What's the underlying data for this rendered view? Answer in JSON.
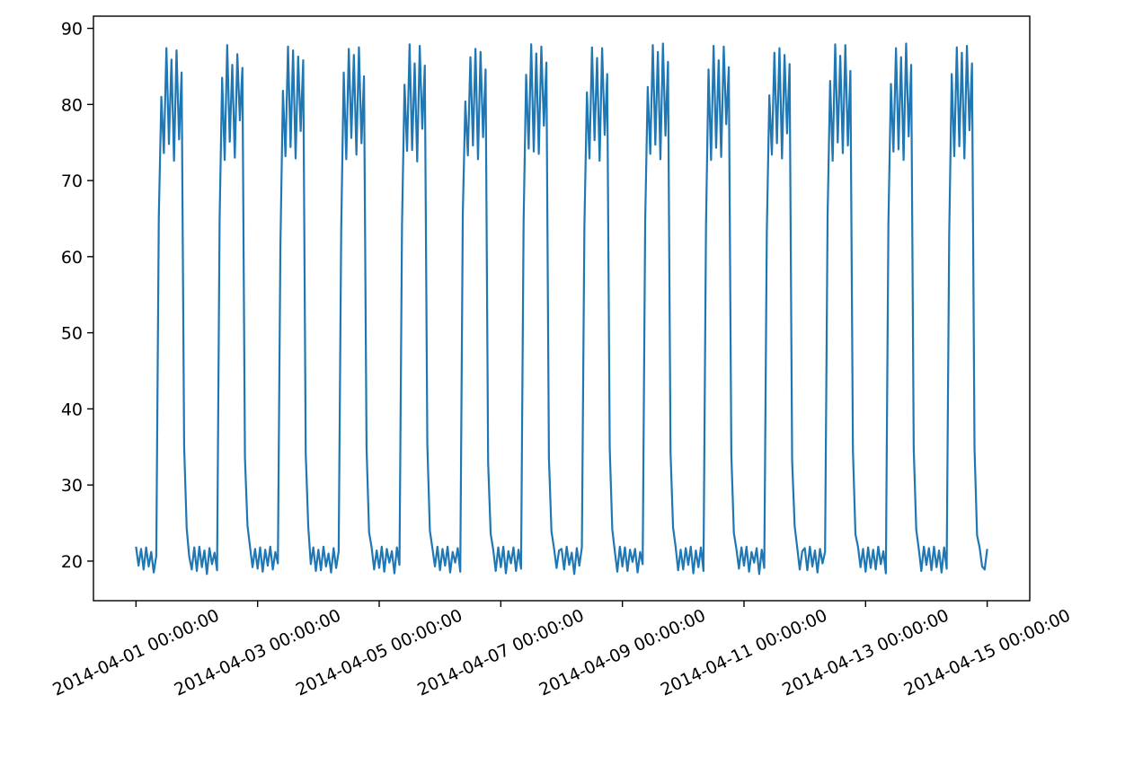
{
  "chart_data": {
    "type": "line",
    "color": "#1f77b4",
    "xlim": [
      "2014-03-31 07:12:00",
      "2014-04-15 16:48:00"
    ],
    "xticks": [
      "2014-04-01 00:00:00",
      "2014-04-03 00:00:00",
      "2014-04-05 00:00:00",
      "2014-04-07 00:00:00",
      "2014-04-09 00:00:00",
      "2014-04-11 00:00:00",
      "2014-04-13 00:00:00",
      "2014-04-15 00:00:00"
    ],
    "ylim": [
      14.8,
      91.6
    ],
    "yticks": [
      20,
      30,
      40,
      50,
      60,
      70,
      80,
      90
    ],
    "x": [
      "2014-04-01 00:00:00",
      "2014-04-01 01:00:00",
      "2014-04-01 02:00:00",
      "2014-04-01 03:00:00",
      "2014-04-01 04:00:00",
      "2014-04-01 05:00:00",
      "2014-04-01 06:00:00",
      "2014-04-01 07:00:00",
      "2014-04-01 08:00:00",
      "2014-04-01 09:00:00",
      "2014-04-01 10:00:00",
      "2014-04-01 11:00:00",
      "2014-04-01 12:00:00",
      "2014-04-01 13:00:00",
      "2014-04-01 14:00:00",
      "2014-04-01 15:00:00",
      "2014-04-01 16:00:00",
      "2014-04-01 17:00:00",
      "2014-04-01 18:00:00",
      "2014-04-01 19:00:00",
      "2014-04-01 20:00:00",
      "2014-04-01 21:00:00",
      "2014-04-01 22:00:00",
      "2014-04-01 23:00:00",
      "2014-04-02 00:00:00",
      "2014-04-02 01:00:00",
      "2014-04-02 02:00:00",
      "2014-04-02 03:00:00",
      "2014-04-02 04:00:00",
      "2014-04-02 05:00:00",
      "2014-04-02 06:00:00",
      "2014-04-02 07:00:00",
      "2014-04-02 08:00:00",
      "2014-04-02 09:00:00",
      "2014-04-02 10:00:00",
      "2014-04-02 11:00:00",
      "2014-04-02 12:00:00",
      "2014-04-02 13:00:00",
      "2014-04-02 14:00:00",
      "2014-04-02 15:00:00",
      "2014-04-02 16:00:00",
      "2014-04-02 17:00:00",
      "2014-04-02 18:00:00",
      "2014-04-02 19:00:00",
      "2014-04-02 20:00:00",
      "2014-04-02 21:00:00",
      "2014-04-02 22:00:00",
      "2014-04-02 23:00:00",
      "2014-04-03 00:00:00",
      "2014-04-03 01:00:00",
      "2014-04-03 02:00:00",
      "2014-04-03 03:00:00",
      "2014-04-03 04:00:00",
      "2014-04-03 05:00:00",
      "2014-04-03 06:00:00",
      "2014-04-03 07:00:00",
      "2014-04-03 08:00:00",
      "2014-04-03 09:00:00",
      "2014-04-03 10:00:00",
      "2014-04-03 11:00:00",
      "2014-04-03 12:00:00",
      "2014-04-03 13:00:00",
      "2014-04-03 14:00:00",
      "2014-04-03 15:00:00",
      "2014-04-03 16:00:00",
      "2014-04-03 17:00:00",
      "2014-04-03 18:00:00",
      "2014-04-03 19:00:00",
      "2014-04-03 20:00:00",
      "2014-04-03 21:00:00",
      "2014-04-03 22:00:00",
      "2014-04-03 23:00:00",
      "2014-04-04 00:00:00",
      "2014-04-04 01:00:00",
      "2014-04-04 02:00:00",
      "2014-04-04 03:00:00",
      "2014-04-04 04:00:00",
      "2014-04-04 05:00:00",
      "2014-04-04 06:00:00",
      "2014-04-04 07:00:00",
      "2014-04-04 08:00:00",
      "2014-04-04 09:00:00",
      "2014-04-04 10:00:00",
      "2014-04-04 11:00:00",
      "2014-04-04 12:00:00",
      "2014-04-04 13:00:00",
      "2014-04-04 14:00:00",
      "2014-04-04 15:00:00",
      "2014-04-04 16:00:00",
      "2014-04-04 17:00:00",
      "2014-04-04 18:00:00",
      "2014-04-04 19:00:00",
      "2014-04-04 20:00:00",
      "2014-04-04 21:00:00",
      "2014-04-04 22:00:00",
      "2014-04-04 23:00:00",
      "2014-04-05 00:00:00",
      "2014-04-05 01:00:00",
      "2014-04-05 02:00:00",
      "2014-04-05 03:00:00",
      "2014-04-05 04:00:00",
      "2014-04-05 05:00:00",
      "2014-04-05 06:00:00",
      "2014-04-05 07:00:00",
      "2014-04-05 08:00:00",
      "2014-04-05 09:00:00",
      "2014-04-05 10:00:00",
      "2014-04-05 11:00:00",
      "2014-04-05 12:00:00",
      "2014-04-05 13:00:00",
      "2014-04-05 14:00:00",
      "2014-04-05 15:00:00",
      "2014-04-05 16:00:00",
      "2014-04-05 17:00:00",
      "2014-04-05 18:00:00",
      "2014-04-05 19:00:00",
      "2014-04-05 20:00:00",
      "2014-04-05 21:00:00",
      "2014-04-05 22:00:00",
      "2014-04-05 23:00:00",
      "2014-04-06 00:00:00",
      "2014-04-06 01:00:00",
      "2014-04-06 02:00:00",
      "2014-04-06 03:00:00",
      "2014-04-06 04:00:00",
      "2014-04-06 05:00:00",
      "2014-04-06 06:00:00",
      "2014-04-06 07:00:00",
      "2014-04-06 08:00:00",
      "2014-04-06 09:00:00",
      "2014-04-06 10:00:00",
      "2014-04-06 11:00:00",
      "2014-04-06 12:00:00",
      "2014-04-06 13:00:00",
      "2014-04-06 14:00:00",
      "2014-04-06 15:00:00",
      "2014-04-06 16:00:00",
      "2014-04-06 17:00:00",
      "2014-04-06 18:00:00",
      "2014-04-06 19:00:00",
      "2014-04-06 20:00:00",
      "2014-04-06 21:00:00",
      "2014-04-06 22:00:00",
      "2014-04-06 23:00:00",
      "2014-04-07 00:00:00",
      "2014-04-07 01:00:00",
      "2014-04-07 02:00:00",
      "2014-04-07 03:00:00",
      "2014-04-07 04:00:00",
      "2014-04-07 05:00:00",
      "2014-04-07 06:00:00",
      "2014-04-07 07:00:00",
      "2014-04-07 08:00:00",
      "2014-04-07 09:00:00",
      "2014-04-07 10:00:00",
      "2014-04-07 11:00:00",
      "2014-04-07 12:00:00",
      "2014-04-07 13:00:00",
      "2014-04-07 14:00:00",
      "2014-04-07 15:00:00",
      "2014-04-07 16:00:00",
      "2014-04-07 17:00:00",
      "2014-04-07 18:00:00",
      "2014-04-07 19:00:00",
      "2014-04-07 20:00:00",
      "2014-04-07 21:00:00",
      "2014-04-07 22:00:00",
      "2014-04-07 23:00:00",
      "2014-04-08 00:00:00",
      "2014-04-08 01:00:00",
      "2014-04-08 02:00:00",
      "2014-04-08 03:00:00",
      "2014-04-08 04:00:00",
      "2014-04-08 05:00:00",
      "2014-04-08 06:00:00",
      "2014-04-08 07:00:00",
      "2014-04-08 08:00:00",
      "2014-04-08 09:00:00",
      "2014-04-08 10:00:00",
      "2014-04-08 11:00:00",
      "2014-04-08 12:00:00",
      "2014-04-08 13:00:00",
      "2014-04-08 14:00:00",
      "2014-04-08 15:00:00",
      "2014-04-08 16:00:00",
      "2014-04-08 17:00:00",
      "2014-04-08 18:00:00",
      "2014-04-08 19:00:00",
      "2014-04-08 20:00:00",
      "2014-04-08 21:00:00",
      "2014-04-08 22:00:00",
      "2014-04-08 23:00:00",
      "2014-04-09 00:00:00",
      "2014-04-09 01:00:00",
      "2014-04-09 02:00:00",
      "2014-04-09 03:00:00",
      "2014-04-09 04:00:00",
      "2014-04-09 05:00:00",
      "2014-04-09 06:00:00",
      "2014-04-09 07:00:00",
      "2014-04-09 08:00:00",
      "2014-04-09 09:00:00",
      "2014-04-09 10:00:00",
      "2014-04-09 11:00:00",
      "2014-04-09 12:00:00",
      "2014-04-09 13:00:00",
      "2014-04-09 14:00:00",
      "2014-04-09 15:00:00",
      "2014-04-09 16:00:00",
      "2014-04-09 17:00:00",
      "2014-04-09 18:00:00",
      "2014-04-09 19:00:00",
      "2014-04-09 20:00:00",
      "2014-04-09 21:00:00",
      "2014-04-09 22:00:00",
      "2014-04-09 23:00:00",
      "2014-04-10 00:00:00",
      "2014-04-10 01:00:00",
      "2014-04-10 02:00:00",
      "2014-04-10 03:00:00",
      "2014-04-10 04:00:00",
      "2014-04-10 05:00:00",
      "2014-04-10 06:00:00",
      "2014-04-10 07:00:00",
      "2014-04-10 08:00:00",
      "2014-04-10 09:00:00",
      "2014-04-10 10:00:00",
      "2014-04-10 11:00:00",
      "2014-04-10 12:00:00",
      "2014-04-10 13:00:00",
      "2014-04-10 14:00:00",
      "2014-04-10 15:00:00",
      "2014-04-10 16:00:00",
      "2014-04-10 17:00:00",
      "2014-04-10 18:00:00",
      "2014-04-10 19:00:00",
      "2014-04-10 20:00:00",
      "2014-04-10 21:00:00",
      "2014-04-10 22:00:00",
      "2014-04-10 23:00:00",
      "2014-04-11 00:00:00",
      "2014-04-11 01:00:00",
      "2014-04-11 02:00:00",
      "2014-04-11 03:00:00",
      "2014-04-11 04:00:00",
      "2014-04-11 05:00:00",
      "2014-04-11 06:00:00",
      "2014-04-11 07:00:00",
      "2014-04-11 08:00:00",
      "2014-04-11 09:00:00",
      "2014-04-11 10:00:00",
      "2014-04-11 11:00:00",
      "2014-04-11 12:00:00",
      "2014-04-11 13:00:00",
      "2014-04-11 14:00:00",
      "2014-04-11 15:00:00",
      "2014-04-11 16:00:00",
      "2014-04-11 17:00:00",
      "2014-04-11 18:00:00",
      "2014-04-11 19:00:00",
      "2014-04-11 20:00:00",
      "2014-04-11 21:00:00",
      "2014-04-11 22:00:00",
      "2014-04-11 23:00:00",
      "2014-04-12 00:00:00",
      "2014-04-12 01:00:00",
      "2014-04-12 02:00:00",
      "2014-04-12 03:00:00",
      "2014-04-12 04:00:00",
      "2014-04-12 05:00:00",
      "2014-04-12 06:00:00",
      "2014-04-12 07:00:00",
      "2014-04-12 08:00:00",
      "2014-04-12 09:00:00",
      "2014-04-12 10:00:00",
      "2014-04-12 11:00:00",
      "2014-04-12 12:00:00",
      "2014-04-12 13:00:00",
      "2014-04-12 14:00:00",
      "2014-04-12 15:00:00",
      "2014-04-12 16:00:00",
      "2014-04-12 17:00:00",
      "2014-04-12 18:00:00",
      "2014-04-12 19:00:00",
      "2014-04-12 20:00:00",
      "2014-04-12 21:00:00",
      "2014-04-12 22:00:00",
      "2014-04-12 23:00:00",
      "2014-04-13 00:00:00",
      "2014-04-13 01:00:00",
      "2014-04-13 02:00:00",
      "2014-04-13 03:00:00",
      "2014-04-13 04:00:00",
      "2014-04-13 05:00:00",
      "2014-04-13 06:00:00",
      "2014-04-13 07:00:00",
      "2014-04-13 08:00:00",
      "2014-04-13 09:00:00",
      "2014-04-13 10:00:00",
      "2014-04-13 11:00:00",
      "2014-04-13 12:00:00",
      "2014-04-13 13:00:00",
      "2014-04-13 14:00:00",
      "2014-04-13 15:00:00",
      "2014-04-13 16:00:00",
      "2014-04-13 17:00:00",
      "2014-04-13 18:00:00",
      "2014-04-13 19:00:00",
      "2014-04-13 20:00:00",
      "2014-04-13 21:00:00",
      "2014-04-13 22:00:00",
      "2014-04-13 23:00:00",
      "2014-04-14 00:00:00",
      "2014-04-14 01:00:00",
      "2014-04-14 02:00:00",
      "2014-04-14 03:00:00",
      "2014-04-14 04:00:00",
      "2014-04-14 05:00:00",
      "2014-04-14 06:00:00",
      "2014-04-14 07:00:00",
      "2014-04-14 08:00:00",
      "2014-04-14 09:00:00",
      "2014-04-14 10:00:00",
      "2014-04-14 11:00:00",
      "2014-04-14 12:00:00",
      "2014-04-14 13:00:00",
      "2014-04-14 14:00:00",
      "2014-04-14 15:00:00",
      "2014-04-14 16:00:00",
      "2014-04-14 17:00:00",
      "2014-04-14 18:00:00",
      "2014-04-14 19:00:00",
      "2014-04-14 20:00:00",
      "2014-04-14 21:00:00",
      "2014-04-14 22:00:00",
      "2014-04-14 23:00:00",
      "2014-04-15 00:00:00"
    ],
    "values": [
      21.9,
      19.4,
      21.6,
      18.9,
      21.8,
      19.3,
      21.2,
      18.5,
      20.7,
      65.2,
      81.0,
      73.6,
      87.4,
      74.8,
      85.9,
      72.6,
      87.1,
      75.4,
      84.2,
      35.1,
      24.3,
      20.6,
      18.9,
      21.8,
      18.7,
      21.9,
      19.2,
      21.4,
      18.3,
      21.7,
      19.6,
      21.1,
      18.8,
      64.9,
      83.5,
      72.7,
      87.8,
      75.1,
      85.2,
      73.0,
      86.6,
      77.9,
      84.8,
      33.6,
      24.7,
      21.9,
      19.2,
      21.6,
      19.0,
      21.8,
      18.6,
      21.5,
      19.4,
      21.9,
      18.9,
      21.2,
      19.7,
      61.4,
      81.8,
      73.2,
      87.6,
      74.4,
      87.1,
      72.9,
      86.3,
      76.5,
      85.8,
      34.1,
      24.5,
      19.6,
      21.8,
      18.7,
      21.5,
      18.8,
      21.9,
      19.3,
      21.0,
      18.5,
      21.7,
      19.1,
      21.3,
      63.5,
      84.2,
      72.8,
      87.3,
      75.6,
      86.5,
      73.4,
      87.5,
      74.9,
      83.7,
      34.9,
      23.8,
      21.8,
      18.9,
      21.4,
      19.1,
      21.9,
      18.6,
      21.6,
      19.8,
      21.3,
      18.4,
      21.8,
      19.5,
      64.2,
      82.6,
      73.9,
      87.9,
      74.0,
      85.4,
      72.5,
      87.7,
      76.8,
      85.1,
      35.3,
      24.0,
      21.7,
      19.3,
      21.9,
      18.8,
      21.6,
      19.4,
      21.9,
      18.5,
      21.2,
      19.8,
      21.7,
      18.6,
      65.7,
      80.4,
      73.3,
      86.2,
      74.6,
      87.3,
      72.8,
      86.9,
      75.7,
      84.6,
      32.9,
      23.6,
      21.5,
      18.7,
      21.8,
      19.2,
      21.9,
      18.4,
      21.3,
      19.7,
      21.8,
      18.7,
      21.5,
      19.0,
      64.6,
      83.9,
      74.2,
      87.9,
      73.8,
      86.7,
      73.5,
      87.6,
      77.2,
      85.5,
      33.5,
      23.9,
      21.7,
      19.1,
      21.4,
      21.6,
      18.9,
      21.9,
      19.5,
      21.1,
      18.3,
      21.7,
      19.4,
      21.8,
      63.9,
      81.6,
      72.9,
      87.5,
      75.3,
      86.1,
      72.6,
      87.4,
      76.0,
      84.0,
      34.8,
      24.2,
      21.3,
      18.6,
      21.9,
      19.3,
      21.8,
      18.7,
      21.5,
      19.9,
      21.6,
      18.5,
      21.2,
      19.6,
      64.8,
      82.3,
      73.5,
      87.8,
      74.7,
      86.9,
      72.8,
      88.0,
      75.9,
      85.6,
      34.3,
      24.4,
      21.9,
      18.8,
      21.5,
      18.9,
      21.7,
      19.5,
      21.9,
      18.4,
      21.4,
      19.2,
      21.8,
      18.7,
      64.1,
      84.6,
      72.7,
      87.7,
      74.3,
      85.8,
      73.1,
      87.6,
      77.4,
      84.9,
      34.0,
      23.7,
      21.6,
      19.0,
      21.8,
      19.4,
      21.9,
      18.6,
      21.2,
      19.8,
      21.7,
      18.3,
      21.5,
      19.1,
      63.2,
      81.2,
      73.4,
      86.8,
      74.9,
      87.4,
      72.9,
      86.5,
      76.2,
      85.3,
      33.2,
      24.6,
      21.8,
      18.9,
      21.3,
      21.7,
      18.8,
      21.9,
      19.3,
      21.4,
      18.5,
      21.6,
      19.7,
      21.2,
      65.4,
      83.1,
      72.6,
      87.9,
      75.0,
      86.4,
      73.6,
      87.8,
      74.6,
      84.4,
      34.5,
      23.5,
      21.9,
      19.2,
      21.6,
      18.6,
      21.8,
      19.1,
      21.5,
      18.9,
      21.9,
      19.6,
      21.3,
      18.4,
      64.3,
      82.7,
      73.8,
      87.4,
      74.1,
      86.2,
      72.7,
      88.0,
      75.8,
      85.2,
      34.7,
      24.1,
      21.6,
      18.7,
      21.9,
      19.5,
      21.7,
      18.8,
      21.9,
      19.2,
      21.4,
      18.5,
      21.8,
      19.0,
      62.8,
      84.0,
      73.2,
      87.5,
      74.5,
      86.8,
      72.9,
      87.7,
      76.6,
      85.4,
      34.8,
      23.4,
      21.8,
      19.3,
      18.9,
      21.6
    ]
  }
}
